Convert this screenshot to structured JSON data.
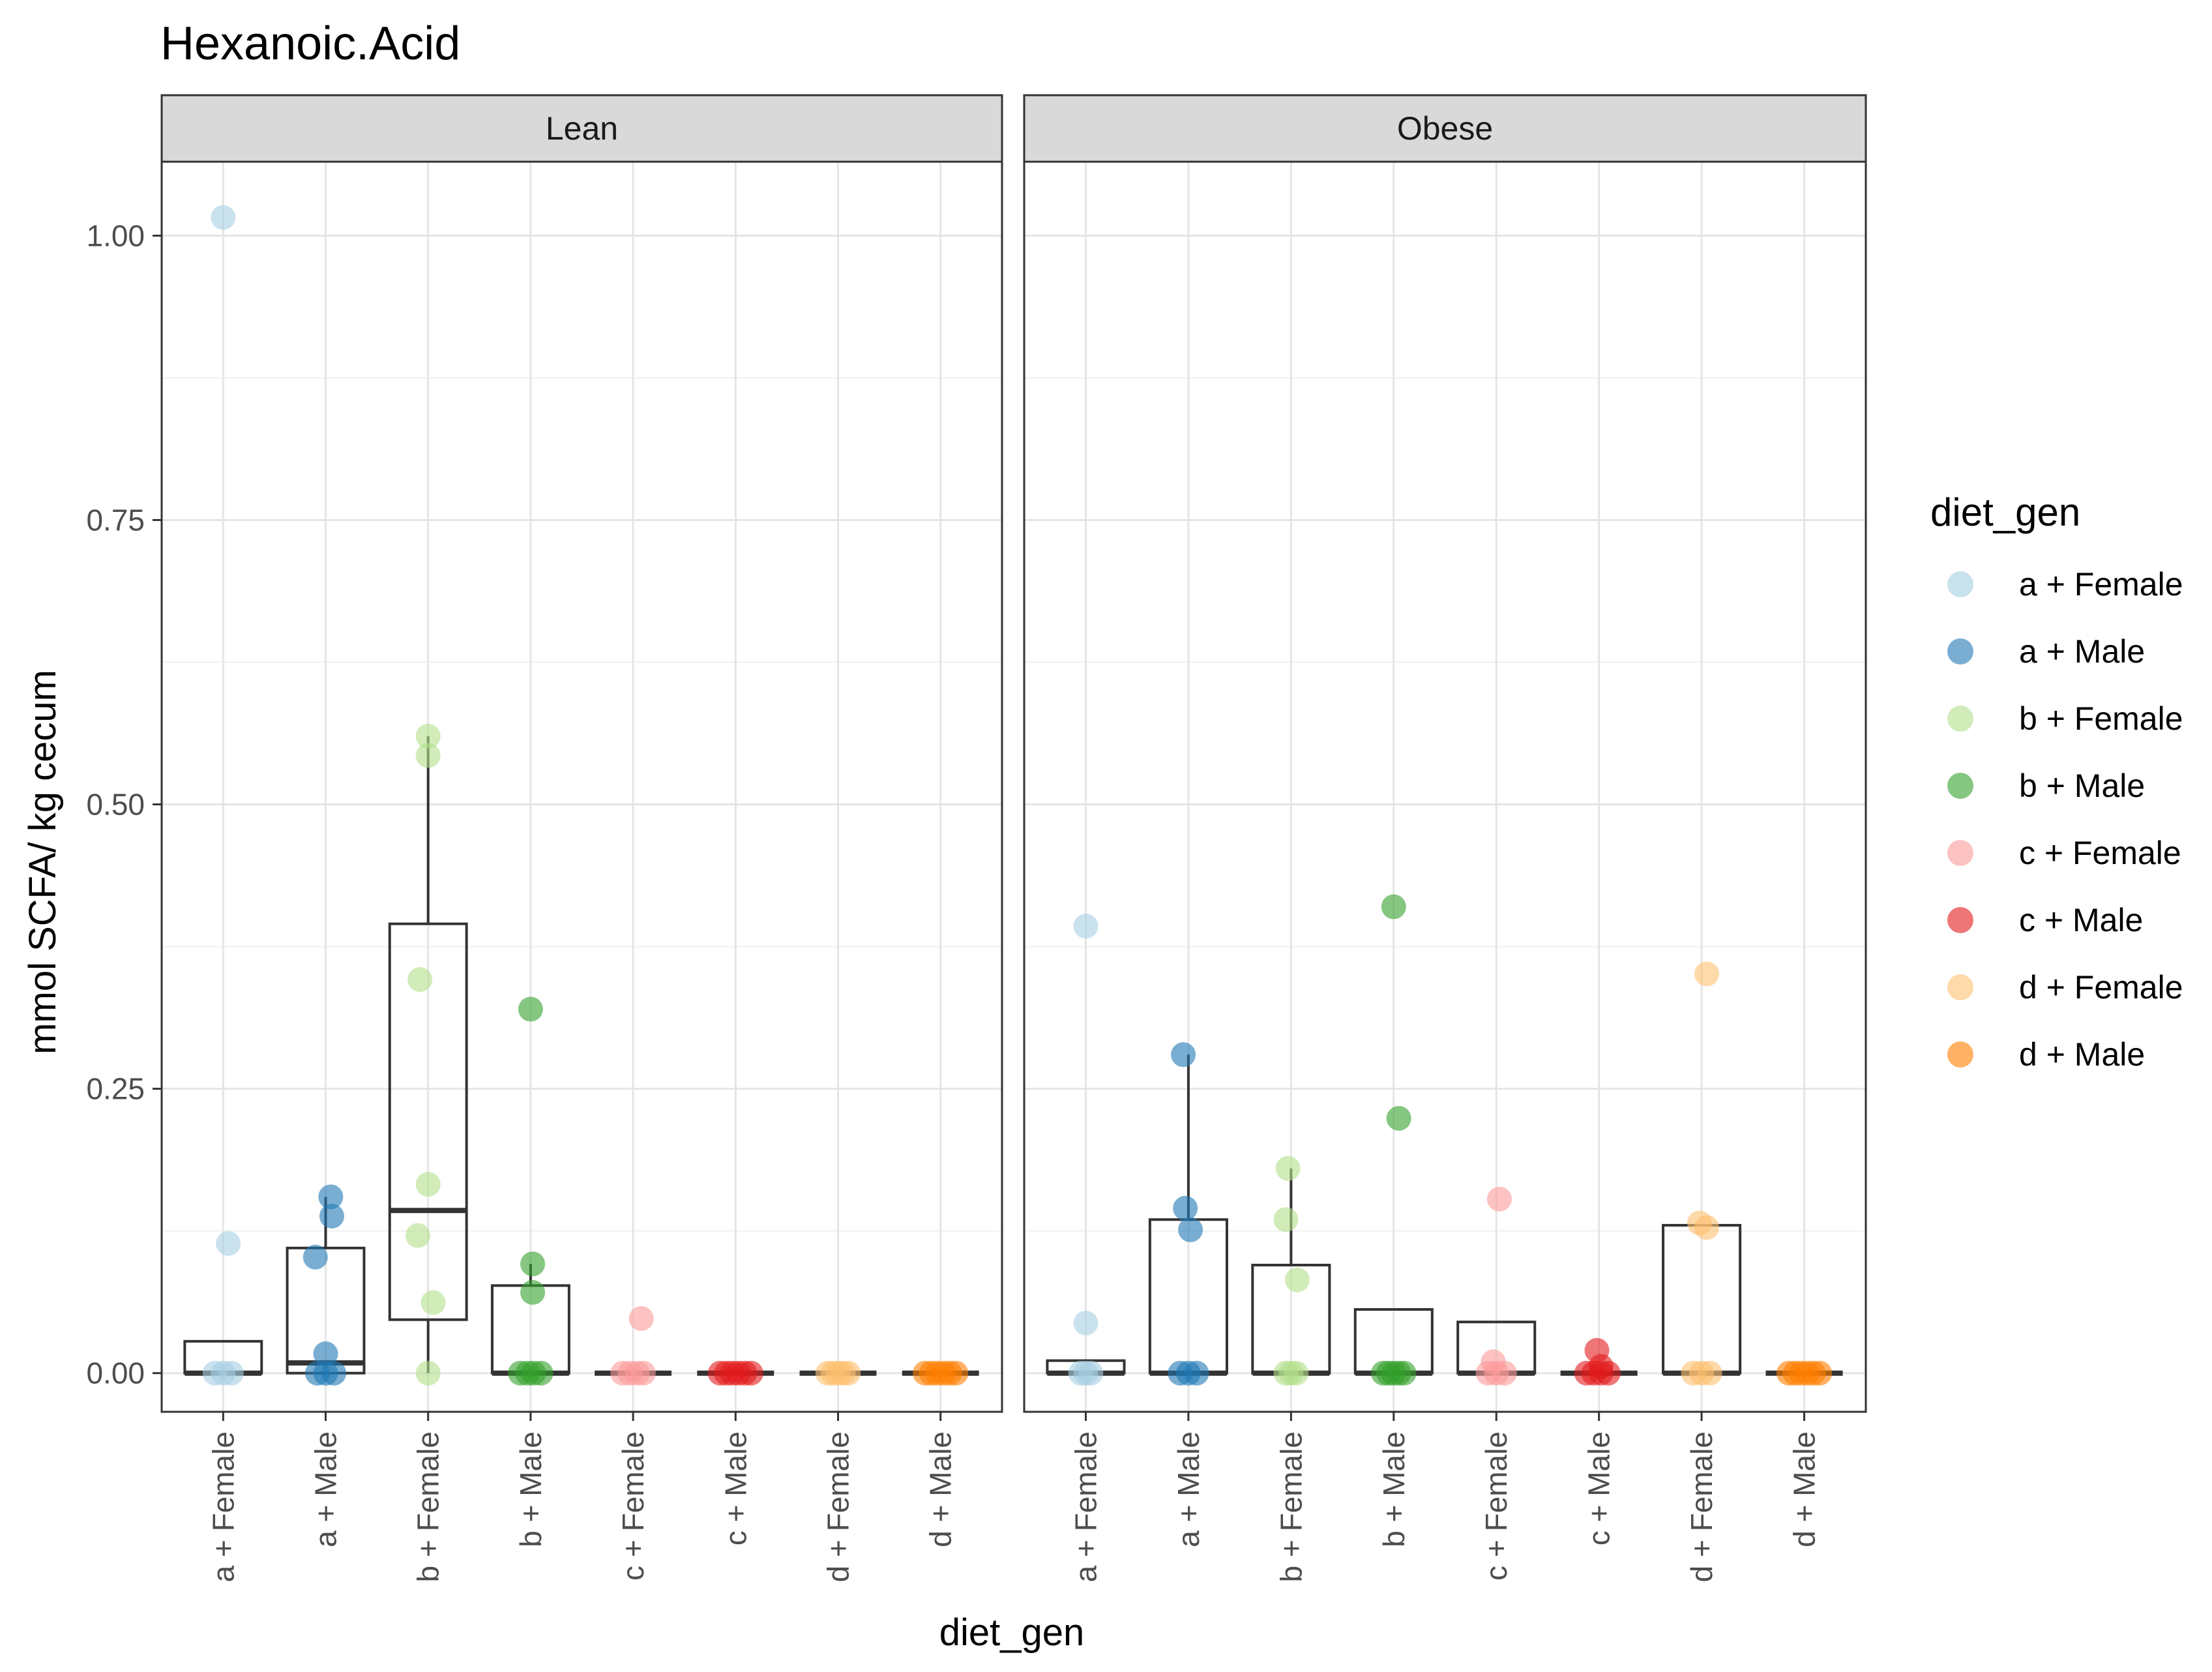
{
  "chart_data": {
    "type": "box",
    "title": "Hexanoic.Acid",
    "xlabel": "diet_gen",
    "ylabel": "mmol SCFA/ kg cecum",
    "ylim": [
      -0.034,
      1.065
    ],
    "yticks": [
      0.0,
      0.25,
      0.5,
      0.75,
      1.0
    ],
    "ytick_labels": [
      "0.00",
      "0.25",
      "0.50",
      "0.75",
      "1.00"
    ],
    "grid": true,
    "categories": [
      "a + Female",
      "a + Male",
      "b + Female",
      "b + Male",
      "c + Female",
      "c + Male",
      "d + Female",
      "d + Male"
    ],
    "colors": {
      "a + Female": "#a6cee3",
      "a + Male": "#1f78b4",
      "b + Female": "#b2df8a",
      "b + Male": "#33a02c",
      "c + Female": "#fb9a99",
      "c + Male": "#e31a1c",
      "d + Female": "#fdbf6f",
      "d + Male": "#ff7f00"
    },
    "legend": {
      "title": "diet_gen",
      "position": "right",
      "entries": [
        "a + Female",
        "a + Male",
        "b + Female",
        "b + Male",
        "c + Female",
        "c + Male",
        "d + Female",
        "d + Male"
      ]
    },
    "panels": [
      {
        "name": "Lean",
        "boxes": [
          {
            "category": "a + Female",
            "lower": 0.0,
            "q1": 0.0,
            "median": 0.0,
            "q3": 0.028,
            "upper": 0.028
          },
          {
            "category": "a + Male",
            "lower": 0.0,
            "q1": 0.0,
            "median": 0.009,
            "q3": 0.11,
            "upper": 0.155
          },
          {
            "category": "b + Female",
            "lower": 0.0,
            "q1": 0.047,
            "median": 0.143,
            "q3": 0.395,
            "upper": 0.56
          },
          {
            "category": "b + Male",
            "lower": 0.0,
            "q1": 0.0,
            "median": 0.0,
            "q3": 0.077,
            "upper": 0.096
          },
          {
            "category": "c + Female",
            "lower": 0.0,
            "q1": 0.0,
            "median": 0.0,
            "q3": 0.0,
            "upper": 0.0
          },
          {
            "category": "c + Male",
            "lower": 0.0,
            "q1": 0.0,
            "median": 0.0,
            "q3": 0.0,
            "upper": 0.0
          },
          {
            "category": "d + Female",
            "lower": 0.0,
            "q1": 0.0,
            "median": 0.0,
            "q3": 0.0,
            "upper": 0.0
          },
          {
            "category": "d + Male",
            "lower": 0.0,
            "q1": 0.0,
            "median": 0.0,
            "q3": 0.0,
            "upper": 0.0
          }
        ],
        "points": [
          {
            "category": "a + Female",
            "values": [
              1.016,
              0.114,
              0.0,
              0.0,
              0.0
            ],
            "jitter": [
              0.0,
              0.05,
              -0.08,
              0.0,
              0.08
            ]
          },
          {
            "category": "a + Male",
            "values": [
              0.155,
              0.138,
              0.102,
              0.017,
              0.0,
              0.0,
              0.0
            ],
            "jitter": [
              0.05,
              0.06,
              -0.1,
              0.0,
              -0.08,
              0.0,
              0.08
            ]
          },
          {
            "category": "b + Female",
            "values": [
              0.56,
              0.543,
              0.346,
              0.166,
              0.121,
              0.062,
              0.0
            ],
            "jitter": [
              0.0,
              0.0,
              -0.08,
              0.0,
              -0.1,
              0.05,
              0.0
            ]
          },
          {
            "category": "b + Male",
            "values": [
              0.32,
              0.096,
              0.071,
              0.0,
              0.0,
              0.0,
              0.0
            ],
            "jitter": [
              0.0,
              0.02,
              0.02,
              -0.1,
              -0.03,
              0.03,
              0.1
            ]
          },
          {
            "category": "c + Female",
            "values": [
              0.048,
              0.0,
              0.0,
              0.0,
              0.0
            ],
            "jitter": [
              0.08,
              -0.1,
              -0.03,
              0.04,
              0.1
            ]
          },
          {
            "category": "c + Male",
            "values": [
              0.0,
              0.0,
              0.0,
              0.0,
              0.0,
              0.0
            ],
            "jitter": [
              -0.15,
              -0.09,
              -0.03,
              0.03,
              0.09,
              0.15
            ]
          },
          {
            "category": "d + Female",
            "values": [
              0.0,
              0.0,
              0.0,
              0.0,
              0.0
            ],
            "jitter": [
              -0.1,
              -0.05,
              0.0,
              0.05,
              0.1
            ]
          },
          {
            "category": "d + Male",
            "values": [
              0.0,
              0.0,
              0.0,
              0.0,
              0.0,
              0.0
            ],
            "jitter": [
              -0.15,
              -0.09,
              -0.03,
              0.03,
              0.09,
              0.15
            ]
          }
        ]
      },
      {
        "name": "Obese",
        "boxes": [
          {
            "category": "a + Female",
            "lower": 0.0,
            "q1": 0.0,
            "median": 0.0,
            "q3": 0.011,
            "upper": 0.011
          },
          {
            "category": "a + Male",
            "lower": 0.0,
            "q1": 0.0,
            "median": 0.0,
            "q3": 0.135,
            "upper": 0.28
          },
          {
            "category": "b + Female",
            "lower": 0.0,
            "q1": 0.0,
            "median": 0.0,
            "q3": 0.095,
            "upper": 0.18
          },
          {
            "category": "b + Male",
            "lower": 0.0,
            "q1": 0.0,
            "median": 0.0,
            "q3": 0.056,
            "upper": 0.056
          },
          {
            "category": "c + Female",
            "lower": 0.0,
            "q1": 0.0,
            "median": 0.0,
            "q3": 0.045,
            "upper": 0.045
          },
          {
            "category": "c + Male",
            "lower": 0.0,
            "q1": 0.0,
            "median": 0.0,
            "q3": 0.0,
            "upper": 0.0
          },
          {
            "category": "d + Female",
            "lower": 0.0,
            "q1": 0.0,
            "median": 0.0,
            "q3": 0.13,
            "upper": 0.13
          },
          {
            "category": "d + Male",
            "lower": 0.0,
            "q1": 0.0,
            "median": 0.0,
            "q3": 0.0,
            "upper": 0.0
          }
        ],
        "points": [
          {
            "category": "a + Female",
            "values": [
              0.393,
              0.044,
              0.0,
              0.0,
              0.0
            ],
            "jitter": [
              0.0,
              0.0,
              -0.05,
              0.0,
              0.05
            ]
          },
          {
            "category": "a + Male",
            "values": [
              0.28,
              0.145,
              0.126,
              0.0,
              0.0,
              0.0
            ],
            "jitter": [
              -0.05,
              -0.03,
              0.02,
              -0.08,
              0.0,
              0.08
            ]
          },
          {
            "category": "b + Female",
            "values": [
              0.18,
              0.135,
              0.082,
              0.0,
              0.0,
              0.0
            ],
            "jitter": [
              -0.03,
              -0.05,
              0.06,
              -0.05,
              0.0,
              0.05
            ]
          },
          {
            "category": "b + Male",
            "values": [
              0.41,
              0.224,
              0.0,
              0.0,
              0.0,
              0.0,
              0.0
            ],
            "jitter": [
              0.0,
              0.05,
              -0.1,
              -0.05,
              0.0,
              0.05,
              0.1
            ]
          },
          {
            "category": "c + Female",
            "values": [
              0.153,
              0.01,
              0.0,
              0.0,
              0.0
            ],
            "jitter": [
              0.03,
              -0.03,
              -0.08,
              0.0,
              0.08
            ]
          },
          {
            "category": "c + Male",
            "values": [
              0.02,
              0.006,
              0.0,
              0.0,
              0.0,
              0.0
            ],
            "jitter": [
              -0.02,
              0.02,
              -0.12,
              -0.05,
              0.02,
              0.09
            ]
          },
          {
            "category": "d + Female",
            "values": [
              0.351,
              0.132,
              0.128,
              0.0,
              0.0,
              0.0
            ],
            "jitter": [
              0.05,
              -0.02,
              0.05,
              -0.08,
              0.0,
              0.08
            ]
          },
          {
            "category": "d + Male",
            "values": [
              0.0,
              0.0,
              0.0,
              0.0,
              0.0,
              0.0
            ],
            "jitter": [
              -0.15,
              -0.09,
              -0.03,
              0.03,
              0.09,
              0.15
            ]
          }
        ]
      }
    ]
  }
}
